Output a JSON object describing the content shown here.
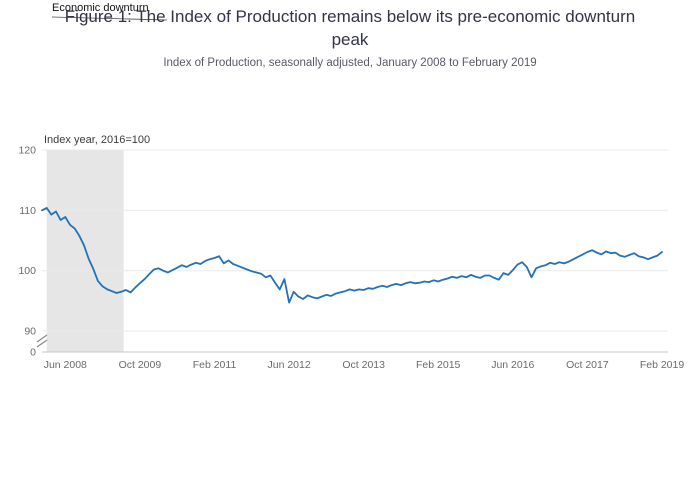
{
  "title": "Figure 1: The Index of Production remains below its pre-economic downturn peak",
  "subtitle": "Index of Production, seasonally adjusted, January 2008 to February 2019",
  "axis_note": "Index year, 2016=100",
  "colors": {
    "line": "#2272b5",
    "grid": "#e9e9e9",
    "axis": "#c6c6c6",
    "shade": "#e6e6e6",
    "tick_text": "#6b6b6b",
    "break_mark": "#8a8a8a",
    "annotation_line": "#444444"
  },
  "chart_data": {
    "type": "line",
    "title": "Figure 1: The Index of Production remains below its pre-economic downturn peak",
    "subtitle": "Index of Production, seasonally adjusted, January 2008 to February 2019",
    "ylabel": "Index year, 2016=100",
    "x_start": "2008-01",
    "x_end": "2019-02",
    "x_tick_labels": [
      "Jun 2008",
      "Oct 2009",
      "Feb 2011",
      "Jun 2012",
      "Oct 2013",
      "Feb 2015",
      "Jun 2016",
      "Oct 2017",
      "Feb 2019"
    ],
    "x_tick_month_indices": [
      5,
      21,
      37,
      53,
      69,
      85,
      101,
      117,
      133
    ],
    "y_ticks": [
      90,
      100,
      110,
      120
    ],
    "y_zero_label": "0",
    "axis_break": true,
    "grid": true,
    "shaded_region": {
      "label": "Economic downturn",
      "start_index": 1,
      "end_index": 17.5,
      "color": "#e6e6e6"
    },
    "series": [
      {
        "name": "Index of Production",
        "color": "#2272b5",
        "values": [
          110.0,
          110.4,
          109.3,
          109.8,
          108.4,
          108.9,
          107.6,
          107.0,
          105.8,
          104.2,
          102.0,
          100.3,
          98.3,
          97.4,
          96.9,
          96.6,
          96.3,
          96.5,
          96.8,
          96.4,
          97.2,
          97.9,
          98.6,
          99.4,
          100.2,
          100.4,
          100.0,
          99.7,
          100.1,
          100.5,
          100.9,
          100.6,
          101.0,
          101.3,
          101.1,
          101.6,
          101.9,
          102.1,
          102.4,
          101.2,
          101.7,
          101.1,
          100.8,
          100.5,
          100.2,
          99.9,
          99.7,
          99.5,
          98.9,
          99.2,
          98.0,
          96.9,
          98.6,
          94.7,
          96.5,
          95.7,
          95.3,
          95.9,
          95.6,
          95.4,
          95.7,
          96.0,
          95.8,
          96.2,
          96.4,
          96.6,
          96.9,
          96.7,
          96.9,
          96.8,
          97.1,
          97.0,
          97.3,
          97.5,
          97.3,
          97.6,
          97.8,
          97.6,
          97.9,
          98.1,
          97.9,
          98.0,
          98.2,
          98.1,
          98.4,
          98.2,
          98.5,
          98.7,
          99.0,
          98.8,
          99.1,
          98.9,
          99.3,
          99.0,
          98.8,
          99.2,
          99.2,
          98.8,
          98.5,
          99.6,
          99.3,
          100.1,
          101.0,
          101.4,
          100.6,
          98.9,
          100.4,
          100.7,
          100.9,
          101.3,
          101.1,
          101.4,
          101.2,
          101.5,
          101.9,
          102.3,
          102.7,
          103.1,
          103.4,
          103.0,
          102.7,
          103.2,
          102.9,
          103.0,
          102.5,
          102.3,
          102.6,
          102.9,
          102.4,
          102.2,
          101.9,
          102.2,
          102.5,
          103.1
        ]
      }
    ]
  }
}
